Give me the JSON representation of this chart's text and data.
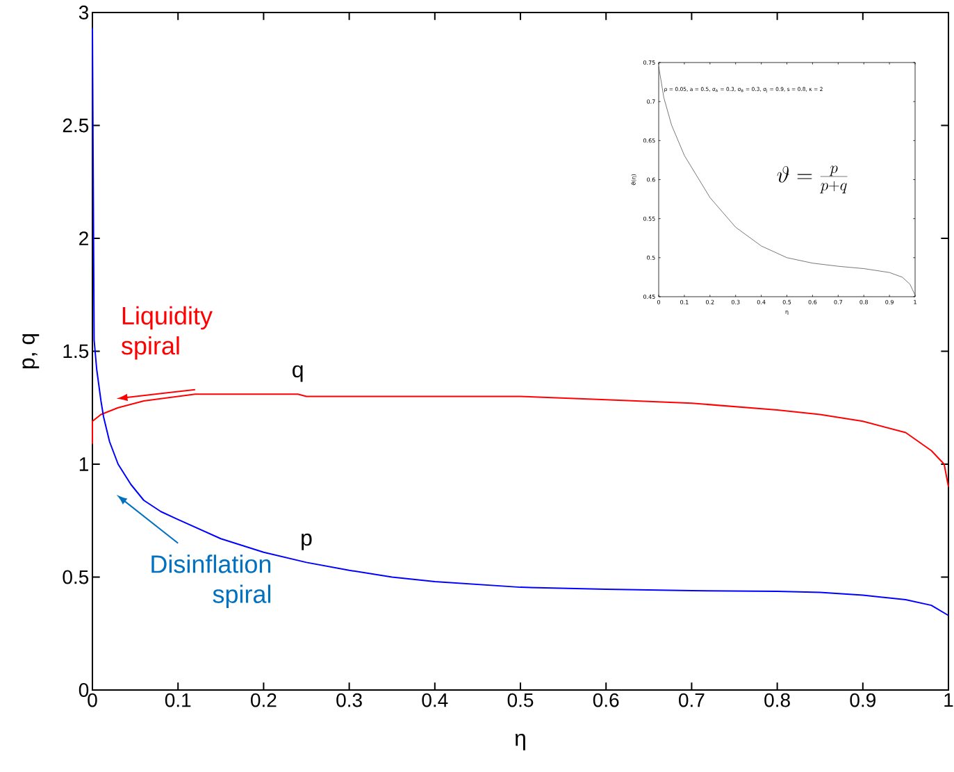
{
  "chart_data": [
    {
      "type": "line",
      "xlabel": "η",
      "ylabel": "p, q",
      "xlim": [
        0,
        1
      ],
      "ylim": [
        0,
        3
      ],
      "xticks": [
        0,
        0.1,
        0.2,
        0.3,
        0.4,
        0.5,
        0.6,
        0.7,
        0.8,
        0.9,
        1
      ],
      "yticks": [
        0,
        0.5,
        1,
        1.5,
        2,
        2.5,
        3
      ],
      "series": [
        {
          "name": "q",
          "color": "#ff0000",
          "x": [
            0,
            0,
            0.01,
            0.03,
            0.06,
            0.1,
            0.12,
            0.24,
            0.25,
            0.5,
            0.6,
            0.7,
            0.8,
            0.85,
            0.9,
            0.95,
            0.98,
            0.995,
            1
          ],
          "values": [
            1.09,
            1.19,
            1.22,
            1.25,
            1.28,
            1.3,
            1.31,
            1.31,
            1.3,
            1.3,
            1.285,
            1.27,
            1.24,
            1.22,
            1.19,
            1.14,
            1.06,
            1.0,
            0.9
          ]
        },
        {
          "name": "p",
          "color": "#0000ff",
          "x": [
            0,
            0.002,
            0.005,
            0.01,
            0.013,
            0.02,
            0.03,
            0.045,
            0.06,
            0.08,
            0.1,
            0.15,
            0.2,
            0.25,
            0.3,
            0.35,
            0.4,
            0.5,
            0.6,
            0.7,
            0.8,
            0.85,
            0.9,
            0.95,
            0.98,
            1
          ],
          "values": [
            2.93,
            1.55,
            1.42,
            1.28,
            1.21,
            1.1,
            1.0,
            0.91,
            0.84,
            0.79,
            0.755,
            0.67,
            0.61,
            0.565,
            0.53,
            0.5,
            0.48,
            0.455,
            0.446,
            0.44,
            0.437,
            0.432,
            0.42,
            0.4,
            0.375,
            0.33
          ]
        }
      ],
      "annotations": [
        "Liquidity spiral",
        "Disinflation spiral"
      ]
    },
    {
      "type": "line",
      "xlabel": "η",
      "ylabel": "ϑ(η)",
      "xlim": [
        0,
        1
      ],
      "ylim": [
        0.45,
        0.75
      ],
      "xticks": [
        0,
        0.1,
        0.2,
        0.3,
        0.4,
        0.5,
        0.6,
        0.7,
        0.8,
        0.9,
        1
      ],
      "yticks": [
        0.45,
        0.5,
        0.55,
        0.6,
        0.65,
        0.7,
        0.75
      ],
      "series": [
        {
          "color": "#555555",
          "x": [
            0,
            0.02,
            0.05,
            0.1,
            0.2,
            0.3,
            0.4,
            0.5,
            0.6,
            0.7,
            0.8,
            0.9,
            0.95,
            0.98,
            1
          ],
          "values": [
            0.745,
            0.705,
            0.67,
            0.631,
            0.577,
            0.539,
            0.515,
            0.5,
            0.493,
            0.489,
            0.486,
            0.481,
            0.475,
            0.466,
            0.452
          ]
        }
      ],
      "annotations": [
        "ρ = 0.05, a = 0.5, σ$_{A}$ = 0.3, σ$_{B}$ = 0.3, σ$_{J}$ = 0.9, s = 0.8, κ = 2",
        "\\vartheta = \\frac{p}{p+q}"
      ]
    }
  ]
}
